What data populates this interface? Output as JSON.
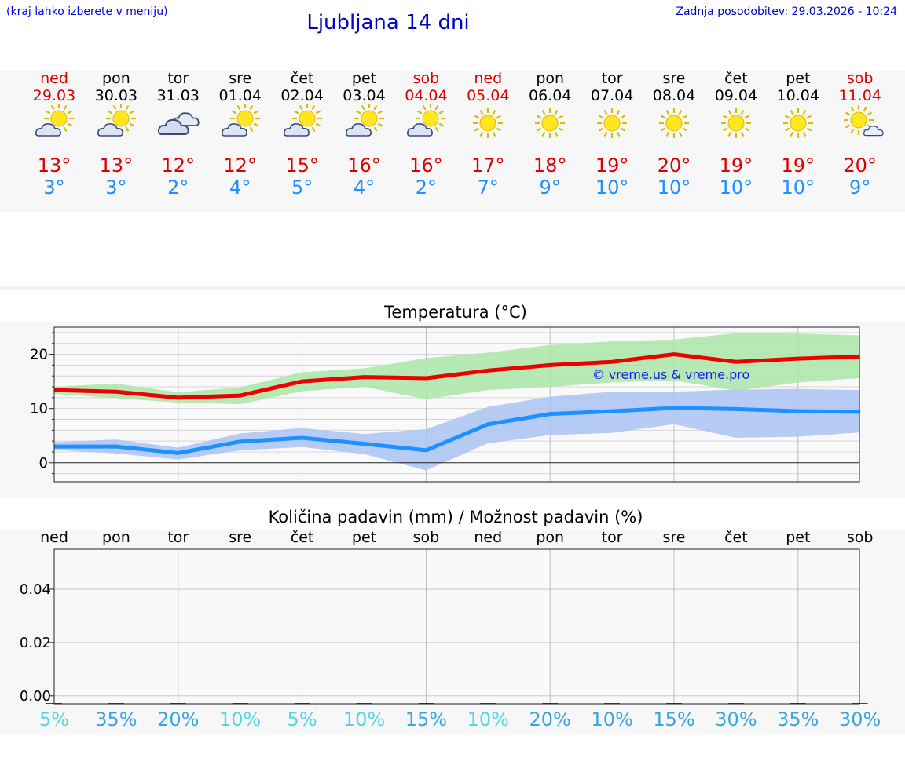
{
  "header": {
    "note": "(kraj lahko izberete v meniju)",
    "title": "Ljubljana 14 dni",
    "updated": "Zadnja posodobitev: 29.03.2026 - 10:24"
  },
  "days": [
    {
      "name": "ned",
      "date": "29.03",
      "weekend": true,
      "icon": "sun-cloud-icon",
      "max": "13°",
      "min": "3°"
    },
    {
      "name": "pon",
      "date": "30.03",
      "weekend": false,
      "icon": "sun-cloud-icon",
      "max": "13°",
      "min": "3°"
    },
    {
      "name": "tor",
      "date": "31.03",
      "weekend": false,
      "icon": "cloudy-icon",
      "max": "12°",
      "min": "2°"
    },
    {
      "name": "sre",
      "date": "01.04",
      "weekend": false,
      "icon": "sun-cloud-icon",
      "max": "12°",
      "min": "4°"
    },
    {
      "name": "čet",
      "date": "02.04",
      "weekend": false,
      "icon": "sun-cloud-icon",
      "max": "15°",
      "min": "5°"
    },
    {
      "name": "pet",
      "date": "03.04",
      "weekend": false,
      "icon": "sun-cloud-icon",
      "max": "16°",
      "min": "4°"
    },
    {
      "name": "sob",
      "date": "04.04",
      "weekend": true,
      "icon": "sun-cloud-icon",
      "max": "16°",
      "min": "2°"
    },
    {
      "name": "ned",
      "date": "05.04",
      "weekend": true,
      "icon": "sun-icon",
      "max": "17°",
      "min": "7°"
    },
    {
      "name": "pon",
      "date": "06.04",
      "weekend": false,
      "icon": "sun-icon",
      "max": "18°",
      "min": "9°"
    },
    {
      "name": "tor",
      "date": "07.04",
      "weekend": false,
      "icon": "sun-icon",
      "max": "19°",
      "min": "10°"
    },
    {
      "name": "sre",
      "date": "08.04",
      "weekend": false,
      "icon": "sun-icon",
      "max": "20°",
      "min": "10°"
    },
    {
      "name": "čet",
      "date": "09.04",
      "weekend": false,
      "icon": "sun-icon",
      "max": "19°",
      "min": "10°"
    },
    {
      "name": "pet",
      "date": "10.04",
      "weekend": false,
      "icon": "sun-icon",
      "max": "19°",
      "min": "10°"
    },
    {
      "name": "sob",
      "date": "11.04",
      "weekend": true,
      "icon": "sun-small-cloud-icon",
      "max": "20°",
      "min": "9°"
    }
  ],
  "colors": {
    "max_line": "#ee0000",
    "min_line": "#1e90ff",
    "max_band": "#aae6a8",
    "min_band": "#aac4f4",
    "weekend": "#dd0000",
    "pct_light": "#55d4e8",
    "pct_mid": "#3ca6dc"
  },
  "chart_data": [
    {
      "type": "line",
      "title": "Temperatura (°C)",
      "watermark": "© vreme.us & vreme.pro",
      "x": [
        0,
        1,
        2,
        3,
        4,
        5,
        6,
        7,
        8,
        9,
        10,
        11,
        12,
        13
      ],
      "ylim": [
        -3.5,
        25
      ],
      "yticks": [
        0,
        10,
        20
      ],
      "grid": true,
      "series": [
        {
          "role": "max",
          "values": [
            13.4,
            13.1,
            12.0,
            12.4,
            15.0,
            15.8,
            15.6,
            17.0,
            18.0,
            18.6,
            20.0,
            18.6,
            19.2,
            19.6
          ]
        },
        {
          "role": "min",
          "values": [
            3.0,
            3.0,
            1.8,
            3.9,
            4.6,
            3.5,
            2.3,
            7.1,
            9.0,
            9.5,
            10.1,
            9.9,
            9.5,
            9.4
          ]
        }
      ],
      "bands": [
        {
          "role": "max",
          "low": [
            12.7,
            11.9,
            11.1,
            10.8,
            13.2,
            14.0,
            11.7,
            13.4,
            14.0,
            14.8,
            15.2,
            13.3,
            14.8,
            15.6
          ],
          "high": [
            14.0,
            14.6,
            13.0,
            13.9,
            16.7,
            17.4,
            19.3,
            20.3,
            21.7,
            22.4,
            22.7,
            23.9,
            23.8,
            23.5
          ]
        },
        {
          "role": "min",
          "low": [
            2.4,
            1.7,
            0.6,
            2.3,
            2.9,
            1.6,
            -1.4,
            3.6,
            5.1,
            5.5,
            7.1,
            4.6,
            4.8,
            5.6
          ],
          "high": [
            3.8,
            4.3,
            2.8,
            5.4,
            6.4,
            5.3,
            6.2,
            10.3,
            12.2,
            13.1,
            13.1,
            13.5,
            13.6,
            13.4
          ]
        }
      ]
    },
    {
      "type": "bar",
      "title": "Količina padavin (mm) / Možnost padavin (%)",
      "categories": [
        "ned",
        "pon",
        "tor",
        "sre",
        "čet",
        "pet",
        "sob",
        "ned",
        "pon",
        "tor",
        "sre",
        "čet",
        "pet",
        "sob"
      ],
      "values": [
        0,
        0,
        0,
        0,
        0,
        0,
        0,
        0,
        0,
        0,
        0,
        0,
        0,
        0
      ],
      "ylim": [
        -0.003,
        0.055
      ],
      "yticks": [
        "0.00",
        "0.02",
        "0.04"
      ],
      "chance": [
        "5%",
        "35%",
        "20%",
        "10%",
        "5%",
        "10%",
        "15%",
        "10%",
        "20%",
        "10%",
        "15%",
        "30%",
        "35%",
        "30%"
      ],
      "chance_tone": [
        "light",
        "mid",
        "mid",
        "light",
        "light",
        "light",
        "mid",
        "light",
        "mid",
        "mid",
        "mid",
        "mid",
        "mid",
        "mid"
      ]
    }
  ]
}
